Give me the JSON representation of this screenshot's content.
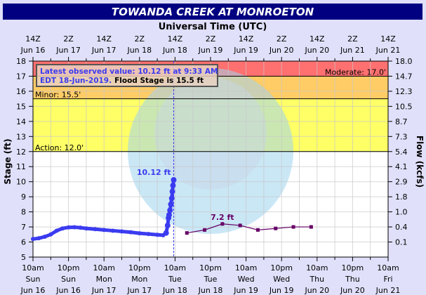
{
  "chart_data": {
    "type": "line",
    "title": "TOWANDA CREEK AT MONROETON",
    "top_axis_title": "Universal Time (UTC)",
    "ylabel": "Stage (ft)",
    "y2label": "Flow (kcfs)",
    "ylim": [
      5,
      18
    ],
    "xlim_hours": [
      0,
      120
    ],
    "grid": true,
    "y_ticks": [
      5,
      6,
      7,
      8,
      9,
      10,
      11,
      12,
      13,
      14,
      15,
      16,
      17,
      18
    ],
    "y2_ticks": [
      {
        "stage": 18,
        "label": "18.0"
      },
      {
        "stage": 17,
        "label": "14.7"
      },
      {
        "stage": 16,
        "label": "12.3"
      },
      {
        "stage": 15,
        "label": "10.5"
      },
      {
        "stage": 14,
        "label": "8.7"
      },
      {
        "stage": 13,
        "label": "7.3"
      },
      {
        "stage": 12,
        "label": "5.4"
      },
      {
        "stage": 11,
        "label": "4.1"
      },
      {
        "stage": 10,
        "label": "2.9"
      },
      {
        "stage": 9,
        "label": "1.8"
      },
      {
        "stage": 8,
        "label": "1.0"
      },
      {
        "stage": 7,
        "label": "0.4"
      },
      {
        "stage": 6,
        "label": "0.1"
      }
    ],
    "top_ticks": [
      {
        "l1": "14Z",
        "l2": "Jun 16"
      },
      {
        "l1": "2Z",
        "l2": "Jun 17"
      },
      {
        "l1": "14Z",
        "l2": "Jun 17"
      },
      {
        "l1": "2Z",
        "l2": "Jun 18"
      },
      {
        "l1": "14Z",
        "l2": "Jun 18"
      },
      {
        "l1": "2Z",
        "l2": "Jun 19"
      },
      {
        "l1": "14Z",
        "l2": "Jun 19"
      },
      {
        "l1": "2Z",
        "l2": "Jun 20"
      },
      {
        "l1": "14Z",
        "l2": "Jun 20"
      },
      {
        "l1": "2Z",
        "l2": "Jun 21"
      },
      {
        "l1": "14Z",
        "l2": "Jun 21"
      }
    ],
    "bottom_ticks": [
      {
        "l1": "10am",
        "l2": "Sun",
        "l3": "Jun 16"
      },
      {
        "l1": "10pm",
        "l2": "Sun",
        "l3": "Jun 16"
      },
      {
        "l1": "10am",
        "l2": "Mon",
        "l3": "Jun 17"
      },
      {
        "l1": "10pm",
        "l2": "Mon",
        "l3": "Jun 17"
      },
      {
        "l1": "10am",
        "l2": "Tue",
        "l3": "Jun 18"
      },
      {
        "l1": "10pm",
        "l2": "Tue",
        "l3": "Jun 18"
      },
      {
        "l1": "10am",
        "l2": "Wed",
        "l3": "Jun 19"
      },
      {
        "l1": "10pm",
        "l2": "Wed",
        "l3": "Jun 19"
      },
      {
        "l1": "10am",
        "l2": "Thu",
        "l3": "Jun 20"
      },
      {
        "l1": "10pm",
        "l2": "Thu",
        "l3": "Jun 20"
      },
      {
        "l1": "10am",
        "l2": "Fri",
        "l3": "Jun 21"
      }
    ],
    "bands": [
      {
        "name": "action",
        "from": 12,
        "to": 15.5,
        "color": "#ffff66"
      },
      {
        "name": "minor",
        "from": 15.5,
        "to": 17,
        "color": "#ffcc66"
      },
      {
        "name": "moderate",
        "from": 17,
        "to": 18,
        "color": "#ff7070"
      }
    ],
    "thresholds": [
      {
        "stage": 12.0,
        "label": "Action: 12.0'"
      },
      {
        "stage": 15.5,
        "label": "Minor: 15.5'"
      },
      {
        "stage": 17.0,
        "label": "Moderate: 17.0'"
      }
    ],
    "series": [
      {
        "name": "Observed",
        "color": "#3b3bf0",
        "x_hours": [
          0,
          2,
          4,
          6,
          8,
          10,
          12,
          14,
          16,
          18,
          21,
          24,
          27,
          30,
          33,
          36,
          39,
          42,
          44,
          45,
          45.5,
          45.8,
          46,
          46.3,
          46.6,
          46.9,
          47.1,
          47.3,
          47.55
        ],
        "values": [
          6.2,
          6.25,
          6.35,
          6.5,
          6.75,
          6.9,
          6.97,
          6.98,
          6.95,
          6.9,
          6.85,
          6.8,
          6.75,
          6.7,
          6.65,
          6.58,
          6.53,
          6.48,
          6.45,
          6.6,
          7.1,
          7.6,
          7.8,
          8.1,
          8.5,
          8.9,
          9.35,
          9.75,
          10.12
        ]
      },
      {
        "name": "Forecast",
        "color": "#660066",
        "x_hours": [
          52,
          58,
          64,
          70,
          76,
          82,
          88,
          94
        ],
        "values": [
          6.6,
          6.8,
          7.2,
          7.1,
          6.8,
          6.9,
          7.0,
          7.0
        ]
      }
    ],
    "observed_time_hours": 47.55,
    "annotations": {
      "observed_peak": "10.12 ft",
      "forecast_peak": "7.2 ft"
    },
    "info_box": {
      "line1": "Latest observed value: 10.12 ft at 9:33 AM",
      "line2a": "EDT 18-Jun-2019.",
      "line2b": "Flood Stage is 15.5 ft"
    }
  }
}
